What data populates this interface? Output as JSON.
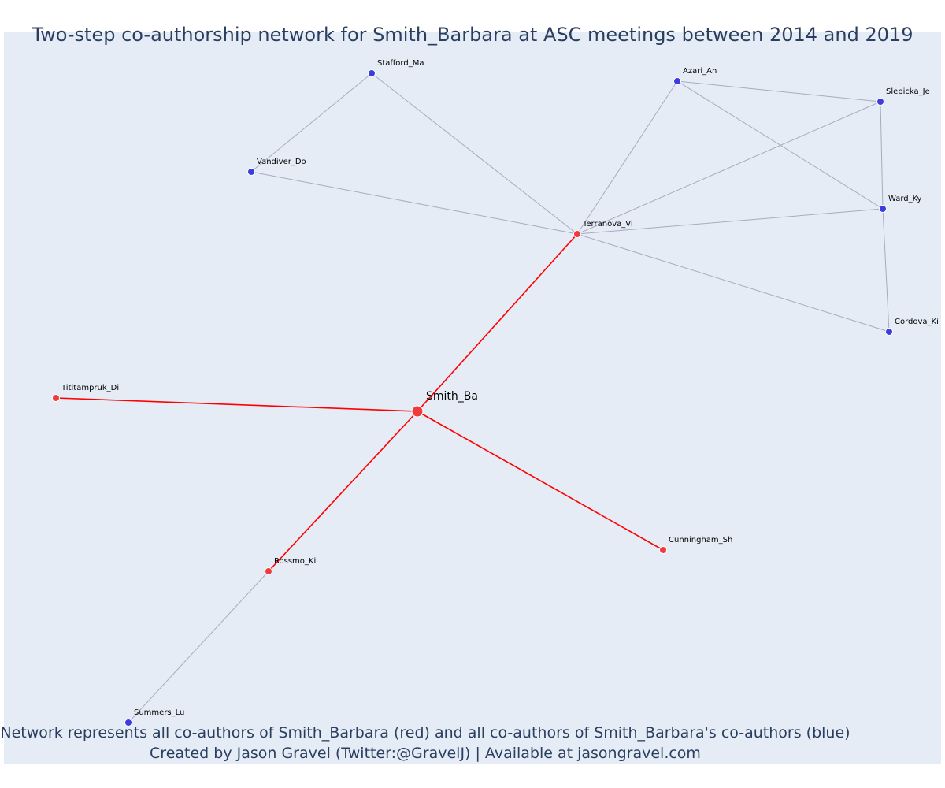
{
  "title": "Two-step co-authorship network for Smith_Barbara at ASC meetings between 2014 and 2019",
  "footer": {
    "line1": "Network represents all co-authors of Smith_Barbara (red) and all co-authors of Smith_Barbara's co-authors (blue)",
    "line2": "Created by Jason Gravel (Twitter:@GravelJ) | Available at jasongravel.com"
  },
  "colors": {
    "background": "#e5ecf6",
    "coauthor": "#ef3b3b",
    "second_step": "#3c3ce0",
    "coauthor_edge": "#ff0000",
    "second_step_edge": "#a7abc0",
    "text": "#2a3f5f"
  },
  "nodes": [
    {
      "id": "Smith_Ba",
      "label": "Smith_Ba",
      "group": "focal"
    },
    {
      "id": "Terranova_Vi",
      "label": "Terranova_Vi",
      "group": "coauthor"
    },
    {
      "id": "Tititampruk_Di",
      "label": "Tititampruk_Di",
      "group": "coauthor"
    },
    {
      "id": "Rossmo_Ki",
      "label": "Rossmo_Ki",
      "group": "coauthor"
    },
    {
      "id": "Cunningham_Sh",
      "label": "Cunningham_Sh",
      "group": "coauthor"
    },
    {
      "id": "Stafford_Ma",
      "label": "Stafford_Ma",
      "group": "second_step"
    },
    {
      "id": "Vandiver_Do",
      "label": "Vandiver_Do",
      "group": "second_step"
    },
    {
      "id": "Azari_An",
      "label": "Azari_An",
      "group": "second_step"
    },
    {
      "id": "Slepicka_Je",
      "label": "Slepicka_Je",
      "group": "second_step"
    },
    {
      "id": "Ward_Ky",
      "label": "Ward_Ky",
      "group": "second_step"
    },
    {
      "id": "Cordova_Ki",
      "label": "Cordova_Ki",
      "group": "second_step"
    },
    {
      "id": "Summers_Lu",
      "label": "Summers_Lu",
      "group": "second_step"
    }
  ],
  "edges": [
    {
      "source": "Smith_Ba",
      "target": "Terranova_Vi",
      "type": "coauthor"
    },
    {
      "source": "Smith_Ba",
      "target": "Tititampruk_Di",
      "type": "coauthor"
    },
    {
      "source": "Smith_Ba",
      "target": "Rossmo_Ki",
      "type": "coauthor"
    },
    {
      "source": "Smith_Ba",
      "target": "Cunningham_Sh",
      "type": "coauthor"
    },
    {
      "source": "Stafford_Ma",
      "target": "Vandiver_Do",
      "type": "second_step"
    },
    {
      "source": "Stafford_Ma",
      "target": "Terranova_Vi",
      "type": "second_step"
    },
    {
      "source": "Vandiver_Do",
      "target": "Terranova_Vi",
      "type": "second_step"
    },
    {
      "source": "Azari_An",
      "target": "Terranova_Vi",
      "type": "second_step"
    },
    {
      "source": "Azari_An",
      "target": "Slepicka_Je",
      "type": "second_step"
    },
    {
      "source": "Azari_An",
      "target": "Ward_Ky",
      "type": "second_step"
    },
    {
      "source": "Slepicka_Je",
      "target": "Terranova_Vi",
      "type": "second_step"
    },
    {
      "source": "Slepicka_Je",
      "target": "Ward_Ky",
      "type": "second_step"
    },
    {
      "source": "Ward_Ky",
      "target": "Terranova_Vi",
      "type": "second_step"
    },
    {
      "source": "Ward_Ky",
      "target": "Cordova_Ki",
      "type": "second_step"
    },
    {
      "source": "Cordova_Ki",
      "target": "Terranova_Vi",
      "type": "second_step"
    },
    {
      "source": "Rossmo_Ki",
      "target": "Summers_Lu",
      "type": "second_step"
    }
  ]
}
